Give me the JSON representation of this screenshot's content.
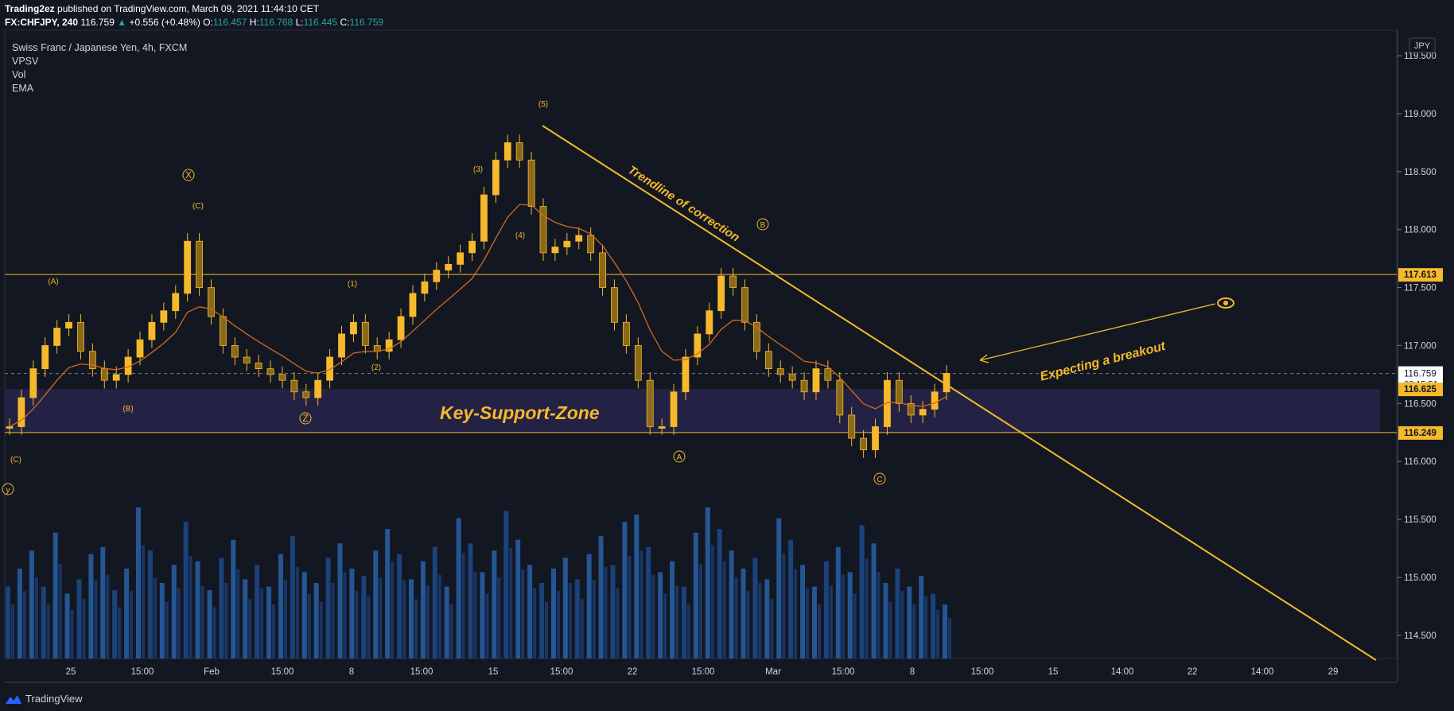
{
  "header": {
    "author": "Trading2ez",
    "published_text": "published on TradingView.com, March 09, 2021 11:44:10 CET",
    "symbol": "FX:CHFJPY, 240",
    "last": "116.759",
    "arrow": "▲",
    "change": "+0.556 (+0.48%)",
    "o_label": "O:",
    "o": "116.457",
    "h_label": "H:",
    "h": "116.768",
    "l_label": "L:",
    "l": "116.445",
    "c_label": "C:",
    "c": "116.759"
  },
  "legend": {
    "title": "Swiss Franc / Japanese Yen, 4h, FXCM",
    "items": [
      "VPSV",
      "Vol",
      "EMA"
    ]
  },
  "footer": {
    "brand": "TradingView"
  },
  "colors": {
    "background": "#131722",
    "accent": "#f5b92b",
    "candle": "#f5b92b",
    "volume": "#2962a8",
    "ema": "#d2691e",
    "zone": "#2a2550"
  },
  "chart_data": {
    "type": "line",
    "currency": "JPY",
    "ylim": [
      114.3,
      119.8
    ],
    "y_ticks": [
      "114.500",
      "115.000",
      "115.500",
      "116.000",
      "116.500",
      "117.000",
      "117.500",
      "118.000",
      "118.500",
      "119.000",
      "119.500"
    ],
    "x_tick_labels": [
      "25",
      "15:00",
      "Feb",
      "15:00",
      "8",
      "15:00",
      "15",
      "15:00",
      "22",
      "15:00",
      "Mar",
      "15:00",
      "8",
      "15:00",
      "15",
      "14:00",
      "22",
      "14:00",
      "29"
    ],
    "price_labels": [
      {
        "value": 117.613,
        "text": "117.613",
        "style": "level"
      },
      {
        "value": 116.759,
        "text": "116.759",
        "style": "current"
      },
      {
        "value": 116.625,
        "text": "116.625",
        "style": "level"
      },
      {
        "value": 116.249,
        "text": "116.249",
        "style": "level"
      }
    ],
    "countdown": "03:15:51",
    "horizontal_levels": [
      117.613,
      116.249
    ],
    "support_zone": {
      "from": 116.249,
      "to": 116.625,
      "label": "Key-Support-Zone"
    },
    "trendline": {
      "label": "Trendline of correction"
    },
    "breakout_note": "Expecting a breakout",
    "wave_labels": [
      "(A)",
      "(B)",
      "(C)",
      "X",
      "(C)",
      "Z",
      "(1)",
      "(2)",
      "(3)",
      "(4)",
      "(5)",
      "A",
      "B",
      "C",
      "y"
    ],
    "series": [
      {
        "values": [
          116.3,
          116.55,
          116.8,
          117.0,
          117.15,
          117.2,
          116.95,
          116.8,
          116.7,
          116.75,
          116.9,
          117.05,
          117.2,
          117.3,
          117.45,
          117.9,
          117.5,
          117.25,
          117.0,
          116.9,
          116.85,
          116.8,
          116.75,
          116.7,
          116.6,
          116.55,
          116.7,
          116.9,
          117.1,
          117.2,
          117.0,
          116.95,
          117.05,
          117.25,
          117.45,
          117.55,
          117.65,
          117.7,
          117.8,
          117.9,
          118.3,
          118.6,
          118.75,
          118.6,
          118.2,
          117.8,
          117.85,
          117.9,
          117.95,
          117.8,
          117.5,
          117.2,
          117.0,
          116.7,
          116.3,
          116.3,
          116.6,
          116.9,
          117.1,
          117.3,
          117.6,
          117.5,
          117.2,
          116.95,
          116.8,
          116.75,
          116.7,
          116.6,
          116.8,
          116.7,
          116.4,
          116.2,
          116.1,
          116.3,
          116.7,
          116.5,
          116.4,
          116.45,
          116.6,
          116.76
        ]
      }
    ],
    "volume": [
      2,
      2.5,
      3,
      2,
      3.5,
      1.8,
      2.2,
      2.9,
      3.1,
      1.9,
      2.5,
      4.2,
      3.0,
      2.1,
      2.6,
      3.8,
      2.7,
      1.9,
      2.8,
      3.3,
      2.2,
      2.6,
      2.0,
      2.9,
      3.4,
      2.4,
      2.1,
      2.8,
      3.2,
      2.5,
      2.3,
      3.0,
      3.6,
      2.9,
      2.2,
      2.7,
      3.1,
      2.0,
      3.9,
      3.2,
      2.4,
      3.0,
      4.1,
      3.3,
      2.6,
      2.1,
      2.5,
      2.8,
      2.2,
      2.9,
      3.4,
      2.6,
      3.8,
      4.0,
      3.1,
      2.4,
      2.7,
      2.0,
      3.5,
      4.2,
      3.6,
      3.0,
      2.5,
      2.8,
      2.2,
      3.9,
      3.3,
      2.6,
      2.0,
      2.7,
      3.1,
      2.4,
      3.7,
      3.2,
      2.1,
      2.5,
      2.0,
      2.3,
      1.8,
      1.5
    ]
  }
}
